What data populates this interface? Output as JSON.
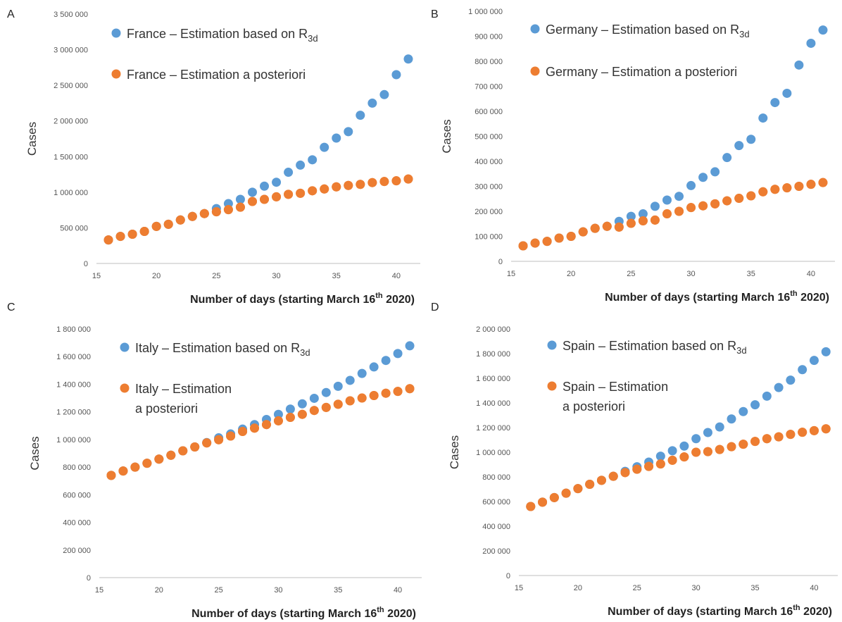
{
  "figure": {
    "panels": [
      {
        "letter": "A",
        "chart_data": {
          "type": "scatter",
          "xlabel_pre": "Number of days (starting March 16",
          "xlabel_sup": "th",
          "xlabel_post": " 2020)",
          "ylabel": "Cases",
          "xlim": [
            15,
            42
          ],
          "ylim": [
            0,
            3500000
          ],
          "xticks": [
            "15",
            "20",
            "25",
            "30",
            "35",
            "40"
          ],
          "yticks": [
            "0",
            "500 000",
            "1 000 000",
            "1 500 000",
            "2 000 000",
            "2 500 000",
            "3 000 000",
            "3 500 000"
          ],
          "x": [
            16,
            17,
            18,
            19,
            20,
            21,
            22,
            23,
            24,
            25,
            26,
            27,
            28,
            29,
            30,
            31,
            32,
            33,
            34,
            35,
            36,
            37,
            38,
            39,
            40,
            41
          ],
          "series": [
            {
              "legend": {
                "text": "France – Estimation based on R",
                "sub": "3d",
                "line2": ""
              },
              "color": "#5B9BD5",
              "values": [
                330000,
                380000,
                410000,
                450000,
                520000,
                550000,
                610000,
                660000,
                700000,
                770000,
                840000,
                900000,
                1000000,
                1085000,
                1140000,
                1280000,
                1380000,
                1455000,
                1630000,
                1760000,
                1850000,
                2080000,
                2250000,
                2370000,
                2650000,
                2870000
              ]
            },
            {
              "legend": {
                "text": "France – Estimation a posteriori",
                "sub": "",
                "line2": ""
              },
              "color": "#ED7D31",
              "values": [
                330000,
                380000,
                410000,
                450000,
                520000,
                550000,
                610000,
                660000,
                700000,
                725000,
                755000,
                790000,
                870000,
                900000,
                935000,
                970000,
                985000,
                1020000,
                1045000,
                1075000,
                1095000,
                1110000,
                1135000,
                1150000,
                1160000,
                1185000
              ]
            }
          ]
        }
      },
      {
        "letter": "B",
        "chart_data": {
          "type": "scatter",
          "xlabel_pre": "Number of days (starting March 16",
          "xlabel_sup": "th",
          "xlabel_post": " 2020)",
          "ylabel": "Cases",
          "xlim": [
            15,
            42
          ],
          "ylim": [
            0,
            1000000
          ],
          "xticks": [
            "15",
            "20",
            "25",
            "30",
            "35",
            "40"
          ],
          "yticks": [
            "0",
            "100 000",
            "200 000",
            "300 000",
            "400 000",
            "500 000",
            "600 000",
            "700 000",
            "800 000",
            "900 000",
            "1 000 000"
          ],
          "x": [
            16,
            17,
            18,
            19,
            20,
            21,
            22,
            23,
            24,
            25,
            26,
            27,
            28,
            29,
            30,
            31,
            32,
            33,
            34,
            35,
            36,
            37,
            38,
            39,
            40,
            41
          ],
          "series": [
            {
              "legend": {
                "text": "Germany – Estimation based on R",
                "sub": "3d",
                "line2": ""
              },
              "color": "#5B9BD5",
              "values": [
                62000,
                73000,
                80000,
                93000,
                100000,
                118000,
                132000,
                140000,
                160000,
                180000,
                190000,
                220000,
                245000,
                260000,
                303000,
                336000,
                358000,
                415000,
                463000,
                488000,
                573000,
                635000,
                672000,
                785000,
                872000,
                925000
              ]
            },
            {
              "legend": {
                "text": "Germany – Estimation a posteriori",
                "sub": "",
                "line2": ""
              },
              "color": "#ED7D31",
              "values": [
                62000,
                73000,
                80000,
                93000,
                100000,
                118000,
                132000,
                140000,
                137000,
                152000,
                162000,
                165000,
                190000,
                200000,
                215000,
                222000,
                230000,
                242000,
                252000,
                262000,
                278000,
                288000,
                294000,
                300000,
                308000,
                315000
              ]
            }
          ]
        }
      },
      {
        "letter": "C",
        "chart_data": {
          "type": "scatter",
          "xlabel_pre": "Number of days (starting March 16",
          "xlabel_sup": "th",
          "xlabel_post": " 2020)",
          "ylabel": "Cases",
          "xlim": [
            15,
            42
          ],
          "ylim": [
            0,
            1800000
          ],
          "xticks": [
            "15",
            "20",
            "25",
            "30",
            "35",
            "40"
          ],
          "yticks": [
            "0",
            "200 000",
            "400 000",
            "600 000",
            "800 000",
            "1 000 000",
            "1 200 000",
            "1 400 000",
            "1 600 000",
            "1 800 000"
          ],
          "x": [
            16,
            17,
            18,
            19,
            20,
            21,
            22,
            23,
            24,
            25,
            26,
            27,
            28,
            29,
            30,
            31,
            32,
            33,
            34,
            35,
            36,
            37,
            38,
            39,
            40,
            41
          ],
          "series": [
            {
              "legend": {
                "text": "Italy – Estimation based on R",
                "sub": "3d",
                "line2": ""
              },
              "color": "#5B9BD5",
              "values": [
                740000,
                772000,
                800000,
                828000,
                858000,
                886000,
                918000,
                946000,
                978000,
                1012000,
                1040000,
                1075000,
                1108000,
                1145000,
                1182000,
                1220000,
                1258000,
                1298000,
                1340000,
                1385000,
                1428000,
                1478000,
                1525000,
                1572000,
                1622000,
                1678000
              ]
            },
            {
              "legend": {
                "text": "Italy – Estimation",
                "sub": "",
                "line2": "a posteriori"
              },
              "color": "#ED7D31",
              "values": [
                740000,
                772000,
                800000,
                828000,
                858000,
                886000,
                918000,
                946000,
                975000,
                998000,
                1025000,
                1058000,
                1082000,
                1108000,
                1135000,
                1160000,
                1182000,
                1210000,
                1232000,
                1255000,
                1280000,
                1300000,
                1318000,
                1335000,
                1348000,
                1368000
              ]
            }
          ]
        }
      },
      {
        "letter": "D",
        "chart_data": {
          "type": "scatter",
          "xlabel_pre": "Number of days (starting March 16",
          "xlabel_sup": "th",
          "xlabel_post": " 2020)",
          "ylabel": "Cases",
          "xlim": [
            15,
            42
          ],
          "ylim": [
            0,
            2000000
          ],
          "xticks": [
            "15",
            "20",
            "25",
            "30",
            "35",
            "40"
          ],
          "yticks": [
            "0",
            "200 000",
            "400 000",
            "600 000",
            "800 000",
            "1 000 000",
            "1 200 000",
            "1 400 000",
            "1 600 000",
            "1 800 000",
            "2 000 000"
          ],
          "x": [
            16,
            17,
            18,
            19,
            20,
            21,
            22,
            23,
            24,
            25,
            26,
            27,
            28,
            29,
            30,
            31,
            32,
            33,
            34,
            35,
            36,
            37,
            38,
            39,
            40,
            41
          ],
          "series": [
            {
              "legend": {
                "text": "Spain – Estimation based on R",
                "sub": "3d",
                "line2": ""
              },
              "color": "#5B9BD5",
              "values": [
                560000,
                595000,
                632000,
                668000,
                705000,
                740000,
                772000,
                805000,
                845000,
                882000,
                920000,
                968000,
                1012000,
                1050000,
                1110000,
                1160000,
                1205000,
                1270000,
                1330000,
                1385000,
                1455000,
                1525000,
                1585000,
                1670000,
                1745000,
                1815000
              ]
            },
            {
              "legend": {
                "text": "Spain – Estimation",
                "sub": "",
                "line2": "a posteriori"
              },
              "color": "#ED7D31",
              "values": [
                560000,
                595000,
                632000,
                668000,
                705000,
                740000,
                772000,
                805000,
                835000,
                862000,
                885000,
                905000,
                935000,
                962000,
                1000000,
                1005000,
                1022000,
                1045000,
                1065000,
                1088000,
                1110000,
                1125000,
                1145000,
                1162000,
                1175000,
                1190000
              ]
            }
          ]
        }
      }
    ]
  }
}
